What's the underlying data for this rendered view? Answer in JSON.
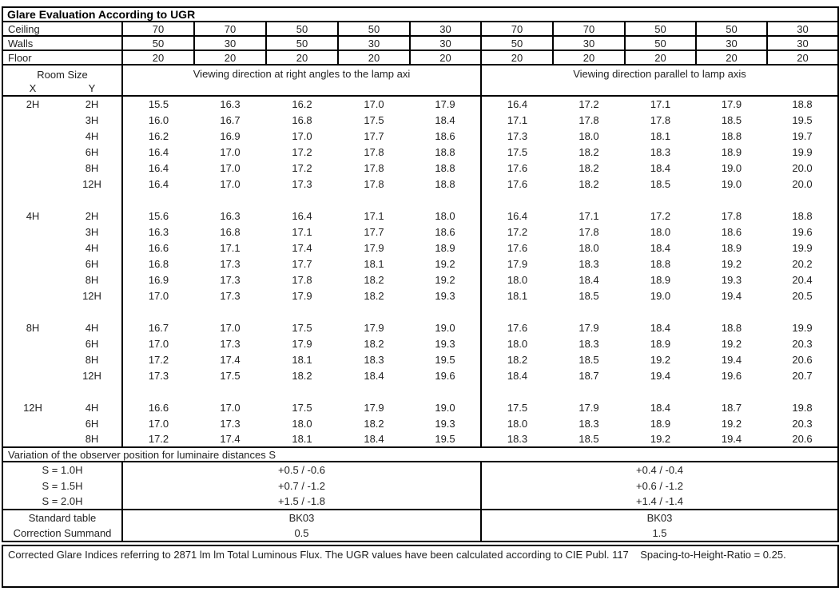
{
  "title": "Glare Evaluation According to UGR",
  "colors": {
    "border": "#000000",
    "text": "#222222",
    "background": "#ffffff"
  },
  "surface_rows": [
    {
      "label": "Ceiling",
      "values": [
        "70",
        "70",
        "50",
        "50",
        "30",
        "70",
        "70",
        "50",
        "50",
        "30"
      ]
    },
    {
      "label": "Walls",
      "values": [
        "50",
        "30",
        "50",
        "30",
        "30",
        "50",
        "30",
        "50",
        "30",
        "30"
      ]
    },
    {
      "label": "Floor",
      "values": [
        "20",
        "20",
        "20",
        "20",
        "20",
        "20",
        "20",
        "20",
        "20",
        "20"
      ]
    }
  ],
  "header": {
    "room_size": "Room Size",
    "x": "X",
    "y": "Y",
    "left_direction": "Viewing direction at right angles to the lamp axi",
    "right_direction": "Viewing direction parallel to lamp axis"
  },
  "ugr_blocks": [
    {
      "x": "2H",
      "rows": [
        {
          "y": "2H",
          "left": [
            "15.5",
            "16.3",
            "16.2",
            "17.0",
            "17.9"
          ],
          "right": [
            "16.4",
            "17.2",
            "17.1",
            "17.9",
            "18.8"
          ]
        },
        {
          "y": "3H",
          "left": [
            "16.0",
            "16.7",
            "16.8",
            "17.5",
            "18.4"
          ],
          "right": [
            "17.1",
            "17.8",
            "17.8",
            "18.5",
            "19.5"
          ]
        },
        {
          "y": "4H",
          "left": [
            "16.2",
            "16.9",
            "17.0",
            "17.7",
            "18.6"
          ],
          "right": [
            "17.3",
            "18.0",
            "18.1",
            "18.8",
            "19.7"
          ]
        },
        {
          "y": "6H",
          "left": [
            "16.4",
            "17.0",
            "17.2",
            "17.8",
            "18.8"
          ],
          "right": [
            "17.5",
            "18.2",
            "18.3",
            "18.9",
            "19.9"
          ]
        },
        {
          "y": "8H",
          "left": [
            "16.4",
            "17.0",
            "17.2",
            "17.8",
            "18.8"
          ],
          "right": [
            "17.6",
            "18.2",
            "18.4",
            "19.0",
            "20.0"
          ]
        },
        {
          "y": "12H",
          "left": [
            "16.4",
            "17.0",
            "17.3",
            "17.8",
            "18.8"
          ],
          "right": [
            "17.6",
            "18.2",
            "18.5",
            "19.0",
            "20.0"
          ]
        }
      ]
    },
    {
      "x": "4H",
      "rows": [
        {
          "y": "2H",
          "left": [
            "15.6",
            "16.3",
            "16.4",
            "17.1",
            "18.0"
          ],
          "right": [
            "16.4",
            "17.1",
            "17.2",
            "17.8",
            "18.8"
          ]
        },
        {
          "y": "3H",
          "left": [
            "16.3",
            "16.8",
            "17.1",
            "17.7",
            "18.6"
          ],
          "right": [
            "17.2",
            "17.8",
            "18.0",
            "18.6",
            "19.6"
          ]
        },
        {
          "y": "4H",
          "left": [
            "16.6",
            "17.1",
            "17.4",
            "17.9",
            "18.9"
          ],
          "right": [
            "17.6",
            "18.0",
            "18.4",
            "18.9",
            "19.9"
          ]
        },
        {
          "y": "6H",
          "left": [
            "16.8",
            "17.3",
            "17.7",
            "18.1",
            "19.2"
          ],
          "right": [
            "17.9",
            "18.3",
            "18.8",
            "19.2",
            "20.2"
          ]
        },
        {
          "y": "8H",
          "left": [
            "16.9",
            "17.3",
            "17.8",
            "18.2",
            "19.2"
          ],
          "right": [
            "18.0",
            "18.4",
            "18.9",
            "19.3",
            "20.4"
          ]
        },
        {
          "y": "12H",
          "left": [
            "17.0",
            "17.3",
            "17.9",
            "18.2",
            "19.3"
          ],
          "right": [
            "18.1",
            "18.5",
            "19.0",
            "19.4",
            "20.5"
          ]
        }
      ]
    },
    {
      "x": "8H",
      "rows": [
        {
          "y": "4H",
          "left": [
            "16.7",
            "17.0",
            "17.5",
            "17.9",
            "19.0"
          ],
          "right": [
            "17.6",
            "17.9",
            "18.4",
            "18.8",
            "19.9"
          ]
        },
        {
          "y": "6H",
          "left": [
            "17.0",
            "17.3",
            "17.9",
            "18.2",
            "19.3"
          ],
          "right": [
            "18.0",
            "18.3",
            "18.9",
            "19.2",
            "20.3"
          ]
        },
        {
          "y": "8H",
          "left": [
            "17.2",
            "17.4",
            "18.1",
            "18.3",
            "19.5"
          ],
          "right": [
            "18.2",
            "18.5",
            "19.2",
            "19.4",
            "20.6"
          ]
        },
        {
          "y": "12H",
          "left": [
            "17.3",
            "17.5",
            "18.2",
            "18.4",
            "19.6"
          ],
          "right": [
            "18.4",
            "18.7",
            "19.4",
            "19.6",
            "20.7"
          ]
        }
      ]
    },
    {
      "x": "12H",
      "rows": [
        {
          "y": "4H",
          "left": [
            "16.6",
            "17.0",
            "17.5",
            "17.9",
            "19.0"
          ],
          "right": [
            "17.5",
            "17.9",
            "18.4",
            "18.7",
            "19.8"
          ]
        },
        {
          "y": "6H",
          "left": [
            "17.0",
            "17.3",
            "18.0",
            "18.2",
            "19.3"
          ],
          "right": [
            "18.0",
            "18.3",
            "18.9",
            "19.2",
            "20.3"
          ]
        },
        {
          "y": "8H",
          "left": [
            "17.2",
            "17.4",
            "18.1",
            "18.4",
            "19.5"
          ],
          "right": [
            "18.3",
            "18.5",
            "19.2",
            "19.4",
            "20.6"
          ]
        }
      ]
    }
  ],
  "variation": {
    "title": "Variation of the observer position for luminaire distances S",
    "rows": [
      {
        "label": "S = 1.0H",
        "left": "+0.5 / -0.6",
        "right": "+0.4 / -0.4"
      },
      {
        "label": "S = 1.5H",
        "left": "+0.7 / -1.2",
        "right": "+0.6 / -1.2"
      },
      {
        "label": "S = 2.0H",
        "left": "+1.5 / -1.8",
        "right": "+1.4 / -1.4"
      }
    ]
  },
  "standard": {
    "rows": [
      {
        "label": "Standard table",
        "left": "BK03",
        "right": "BK03"
      },
      {
        "label": "Correction Summand",
        "left": "0.5",
        "right": "1.5"
      }
    ]
  },
  "footer": "Corrected Glare Indices referring to 2871 lm lm Total Luminous Flux. The UGR values have been calculated according to CIE Publ. 117    Spacing-to-Height-Ratio = 0.25."
}
